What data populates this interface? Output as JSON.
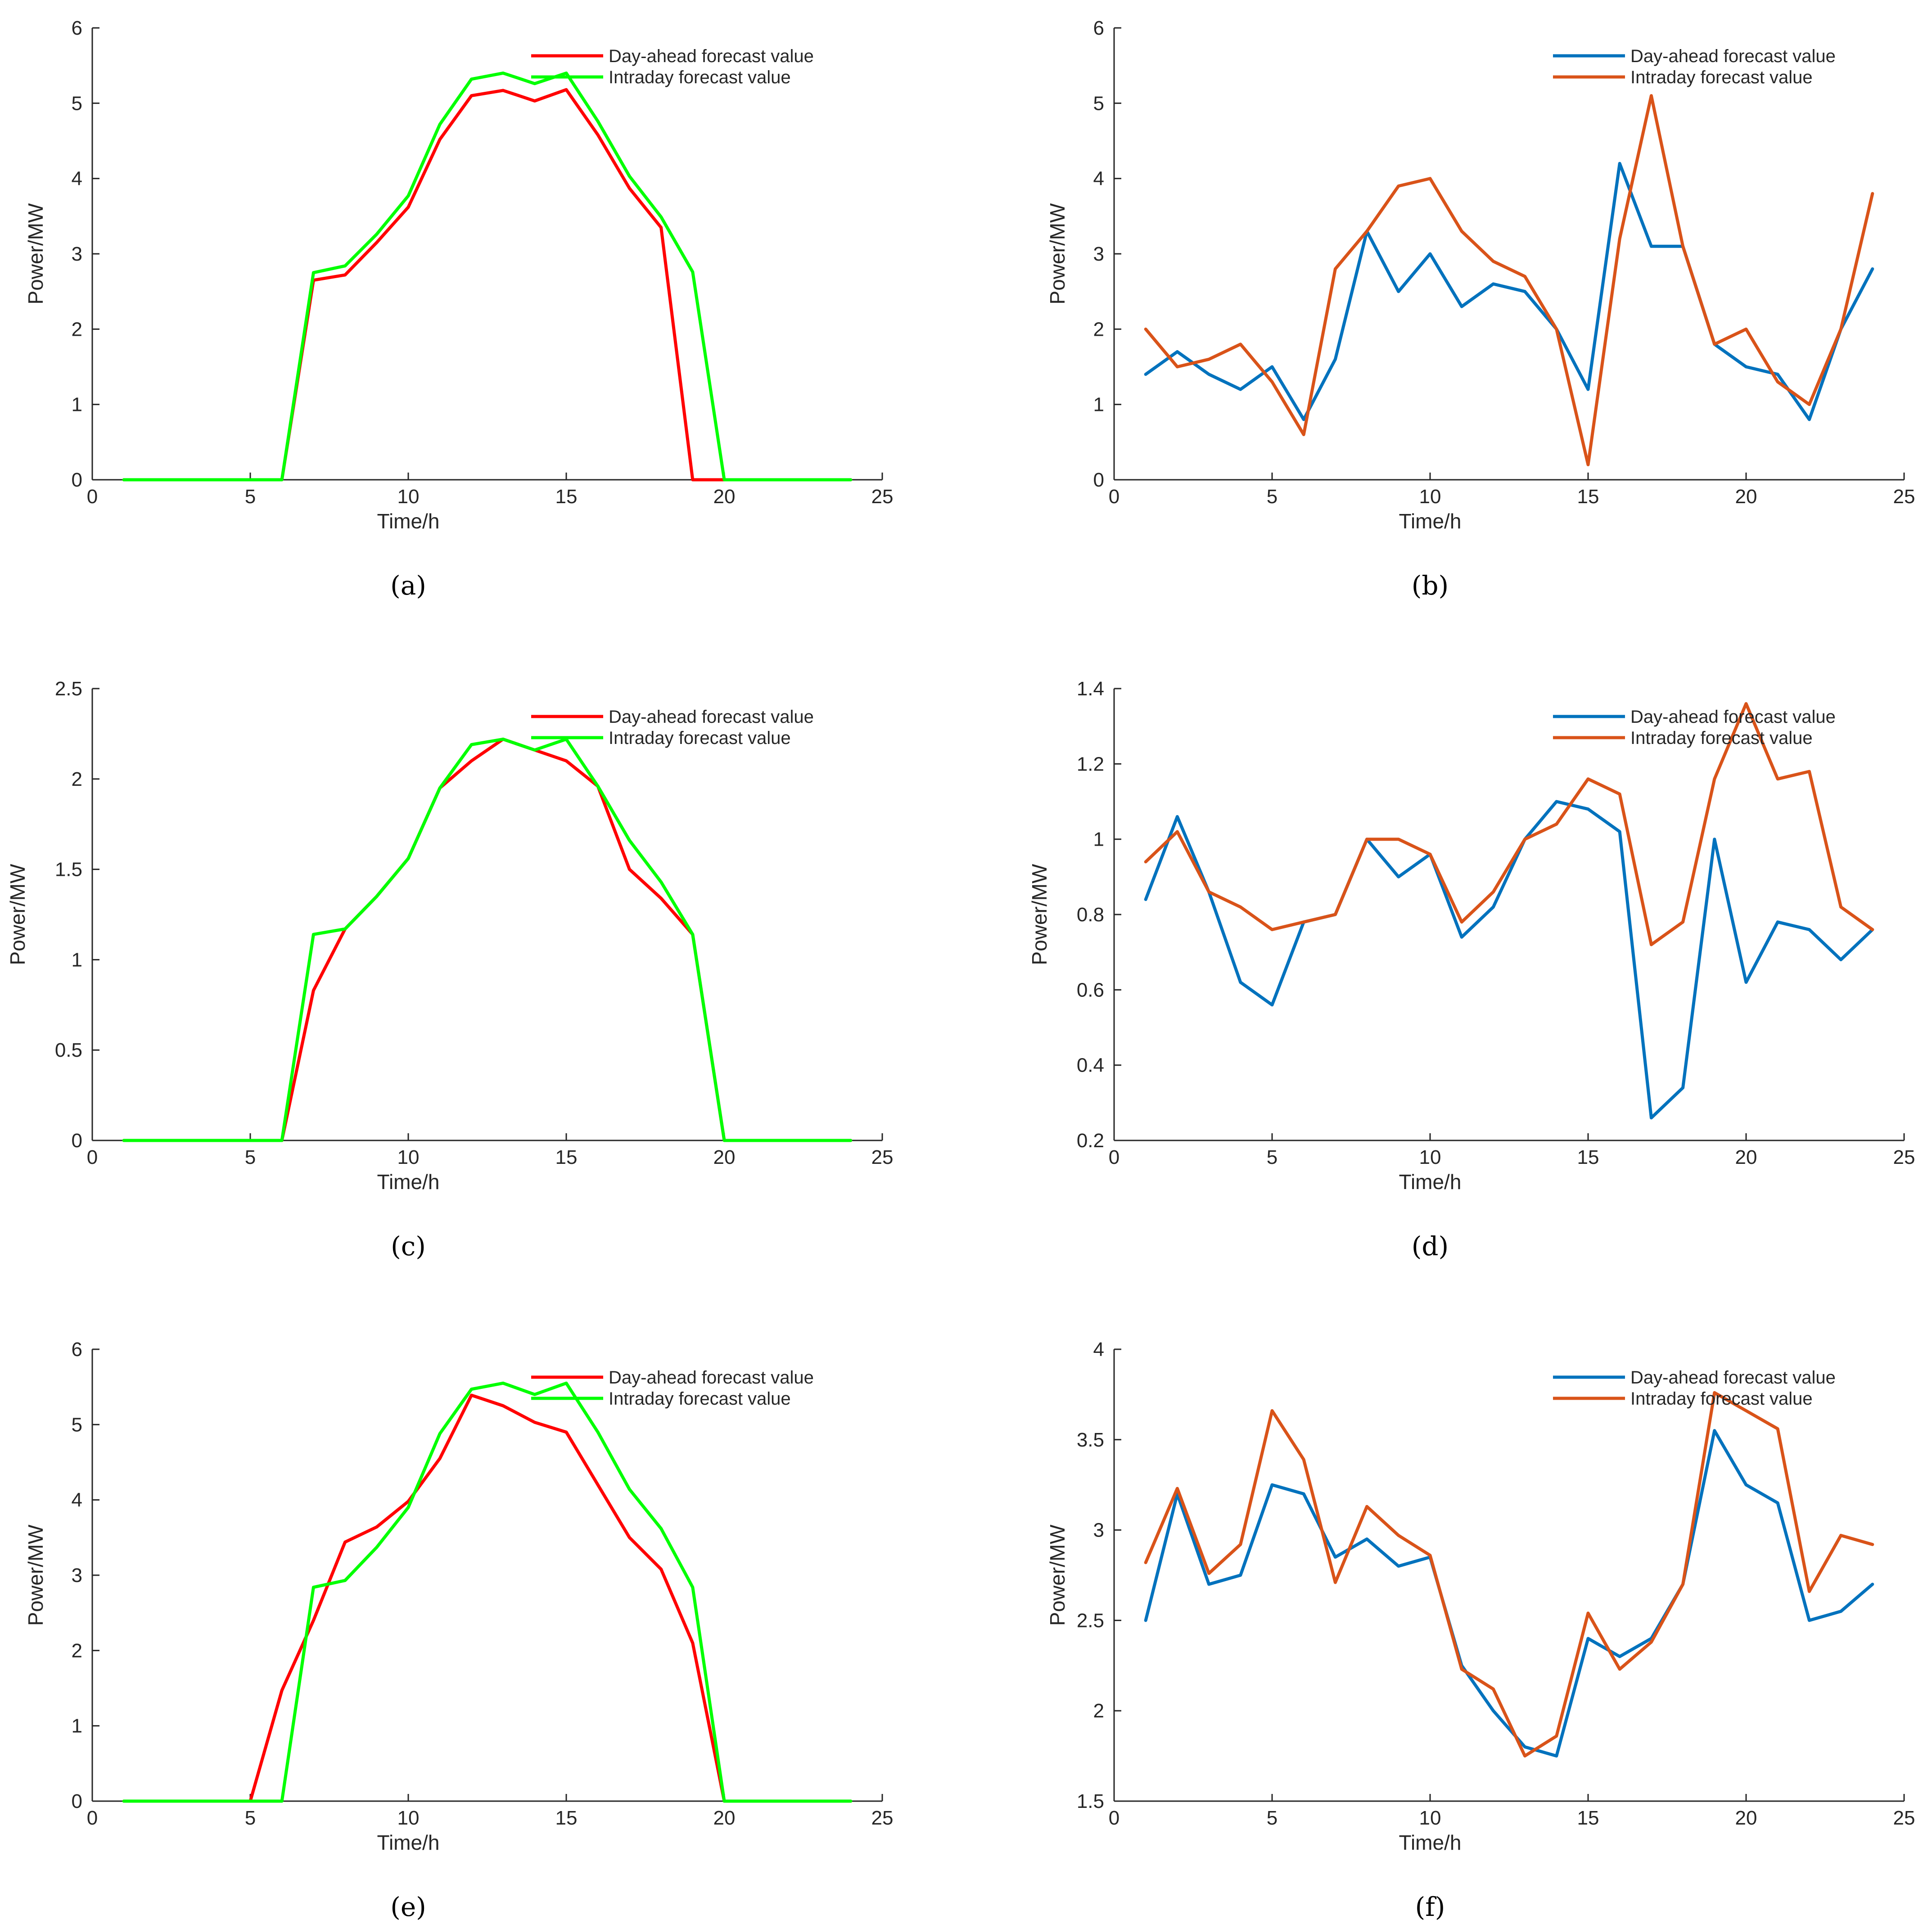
{
  "chart_data": [
    {
      "id": "a",
      "caption": "(a)",
      "type": "line",
      "xlabel": "Time/h",
      "ylabel": "Power/MW",
      "xlim": [
        0,
        25
      ],
      "ylim": [
        0,
        6
      ],
      "xticks": [
        0,
        5,
        10,
        15,
        20,
        25
      ],
      "yticks": [
        0,
        1,
        2,
        3,
        4,
        5,
        6
      ],
      "ytick_labels": [
        "0",
        "1",
        "2",
        "3",
        "4",
        "5",
        "6"
      ],
      "legend_position": "top-right",
      "x": [
        1,
        2,
        3,
        4,
        5,
        6,
        7,
        8,
        9,
        10,
        11,
        12,
        13,
        14,
        15,
        16,
        17,
        18,
        19,
        20,
        21,
        22,
        23,
        24
      ],
      "series": [
        {
          "name": "Day-ahead forecast value",
          "color": "#ff0000",
          "values": [
            0,
            0,
            0,
            0,
            0,
            0,
            2.65,
            2.72,
            3.15,
            3.62,
            4.52,
            5.1,
            5.17,
            5.03,
            5.18,
            4.58,
            3.87,
            3.35,
            0,
            0,
            0,
            0,
            0,
            0
          ]
        },
        {
          "name": "Intraday forecast value",
          "color": "#00ff00",
          "values": [
            0,
            0,
            0,
            0,
            0,
            0,
            2.75,
            2.84,
            3.26,
            3.77,
            4.72,
            5.32,
            5.4,
            5.26,
            5.4,
            4.76,
            4.03,
            3.49,
            2.76,
            0,
            0,
            0,
            0,
            0
          ]
        }
      ]
    },
    {
      "id": "b",
      "caption": "(b)",
      "type": "line",
      "xlabel": "Time/h",
      "ylabel": "Power/MW",
      "xlim": [
        0,
        25
      ],
      "ylim": [
        0,
        6
      ],
      "xticks": [
        0,
        5,
        10,
        15,
        20,
        25
      ],
      "yticks": [
        0,
        1,
        2,
        3,
        4,
        5,
        6
      ],
      "ytick_labels": [
        "0",
        "1",
        "2",
        "3",
        "4",
        "5",
        "6"
      ],
      "legend_position": "top-right",
      "x": [
        1,
        2,
        3,
        4,
        5,
        6,
        7,
        8,
        9,
        10,
        11,
        12,
        13,
        14,
        15,
        16,
        17,
        18,
        19,
        20,
        21,
        22,
        23,
        24
      ],
      "series": [
        {
          "name": "Day-ahead forecast value",
          "color": "#0072bd",
          "values": [
            1.4,
            1.7,
            1.4,
            1.2,
            1.5,
            0.8,
            1.6,
            3.3,
            2.5,
            3.0,
            2.3,
            2.6,
            2.5,
            2.0,
            1.2,
            4.2,
            3.1,
            3.1,
            1.8,
            1.5,
            1.4,
            0.8,
            2.0,
            2.8
          ]
        },
        {
          "name": "Intraday forecast value",
          "color": "#d95319",
          "values": [
            2.0,
            1.5,
            1.6,
            1.8,
            1.3,
            0.6,
            2.8,
            3.3,
            3.9,
            4.0,
            3.3,
            2.9,
            2.7,
            2.0,
            0.2,
            3.2,
            5.1,
            3.1,
            1.8,
            2.0,
            1.3,
            1.0,
            2.0,
            3.8
          ]
        }
      ]
    },
    {
      "id": "c",
      "caption": "(c)",
      "type": "line",
      "xlabel": "Time/h",
      "ylabel": "Power/MW",
      "xlim": [
        0,
        25
      ],
      "ylim": [
        0,
        2.5
      ],
      "xticks": [
        0,
        5,
        10,
        15,
        20,
        25
      ],
      "yticks": [
        0,
        0.5,
        1,
        1.5,
        2,
        2.5
      ],
      "ytick_labels": [
        "0",
        "0.5",
        "1",
        "1.5",
        "2",
        "2.5"
      ],
      "legend_position": "top-right",
      "x": [
        1,
        2,
        3,
        4,
        5,
        6,
        7,
        8,
        9,
        10,
        11,
        12,
        13,
        14,
        15,
        16,
        17,
        18,
        19,
        20,
        21,
        22,
        23,
        24
      ],
      "series": [
        {
          "name": "Day-ahead forecast value",
          "color": "#ff0000",
          "values": [
            0,
            0,
            0,
            0,
            0,
            0,
            0.83,
            1.17,
            1.35,
            1.56,
            1.95,
            2.1,
            2.22,
            2.16,
            2.1,
            1.96,
            1.5,
            1.34,
            1.14,
            0,
            0,
            0,
            0,
            0
          ]
        },
        {
          "name": "Intraday forecast value",
          "color": "#00ff00",
          "values": [
            0,
            0,
            0,
            0,
            0,
            0,
            1.14,
            1.17,
            1.35,
            1.56,
            1.95,
            2.19,
            2.22,
            2.16,
            2.22,
            1.96,
            1.66,
            1.43,
            1.14,
            0,
            0,
            0,
            0,
            0
          ]
        }
      ]
    },
    {
      "id": "d",
      "caption": "(d)",
      "type": "line",
      "xlabel": "Time/h",
      "ylabel": "Power/MW",
      "xlim": [
        0,
        25
      ],
      "ylim": [
        0.2,
        1.4
      ],
      "xticks": [
        0,
        5,
        10,
        15,
        20,
        25
      ],
      "yticks": [
        0.2,
        0.4,
        0.6,
        0.8,
        1,
        1.2,
        1.4
      ],
      "ytick_labels": [
        "0.2",
        "0.4",
        "0.6",
        "0.8",
        "1",
        "1.2",
        "1.4"
      ],
      "legend_position": "top-right",
      "x": [
        1,
        2,
        3,
        4,
        5,
        6,
        7,
        8,
        9,
        10,
        11,
        12,
        13,
        14,
        15,
        16,
        17,
        18,
        19,
        20,
        21,
        22,
        23,
        24
      ],
      "series": [
        {
          "name": "Day-ahead forecast value",
          "color": "#0072bd",
          "values": [
            0.84,
            1.06,
            0.86,
            0.62,
            0.56,
            0.78,
            0.8,
            1.0,
            0.9,
            0.96,
            0.74,
            0.82,
            1.0,
            1.1,
            1.08,
            1.02,
            0.26,
            0.34,
            1.0,
            0.62,
            0.78,
            0.76,
            0.68,
            0.76
          ]
        },
        {
          "name": "Intraday forecast value",
          "color": "#d95319",
          "values": [
            0.94,
            1.02,
            0.86,
            0.82,
            0.76,
            0.78,
            0.8,
            1.0,
            1.0,
            0.96,
            0.78,
            0.86,
            1.0,
            1.04,
            1.16,
            1.12,
            0.72,
            0.78,
            1.16,
            1.36,
            1.16,
            1.18,
            0.82,
            0.76
          ]
        }
      ]
    },
    {
      "id": "e",
      "caption": "(e)",
      "type": "line",
      "xlabel": "Time/h",
      "ylabel": "Power/MW",
      "xlim": [
        0,
        25
      ],
      "ylim": [
        0,
        6
      ],
      "xticks": [
        0,
        5,
        10,
        15,
        20,
        25
      ],
      "yticks": [
        0,
        1,
        2,
        3,
        4,
        5,
        6
      ],
      "ytick_labels": [
        "0",
        "1",
        "2",
        "3",
        "4",
        "5",
        "6"
      ],
      "legend_position": "top-right",
      "x": [
        1,
        2,
        3,
        4,
        5,
        6,
        7,
        8,
        9,
        10,
        11,
        12,
        13,
        14,
        15,
        16,
        17,
        18,
        19,
        20,
        21,
        22,
        23,
        24
      ],
      "series": [
        {
          "name": "Day-ahead forecast value",
          "color": "#ff0000",
          "values": [
            0,
            0,
            0,
            0,
            0,
            1.47,
            2.4,
            3.44,
            3.64,
            3.98,
            4.55,
            5.39,
            5.25,
            5.03,
            4.9,
            4.2,
            3.5,
            3.08,
            2.1,
            0,
            0,
            0,
            0,
            0
          ]
        },
        {
          "name": "Intraday forecast value",
          "color": "#00ff00",
          "values": [
            0,
            0,
            0,
            0,
            0,
            0,
            2.84,
            2.93,
            3.37,
            3.9,
            4.88,
            5.47,
            5.55,
            5.4,
            5.55,
            4.9,
            4.14,
            3.62,
            2.84,
            0,
            0,
            0,
            0,
            0
          ]
        }
      ]
    },
    {
      "id": "f",
      "caption": "(f)",
      "type": "line",
      "xlabel": "Time/h",
      "ylabel": "Power/MW",
      "xlim": [
        0,
        25
      ],
      "ylim": [
        1.5,
        4
      ],
      "xticks": [
        0,
        5,
        10,
        15,
        20,
        25
      ],
      "yticks": [
        1.5,
        2,
        2.5,
        3,
        3.5,
        4
      ],
      "ytick_labels": [
        "1.5",
        "2",
        "2.5",
        "3",
        "3.5",
        "4"
      ],
      "legend_position": "top-right",
      "x": [
        1,
        2,
        3,
        4,
        5,
        6,
        7,
        8,
        9,
        10,
        11,
        12,
        13,
        14,
        15,
        16,
        17,
        18,
        19,
        20,
        21,
        22,
        23,
        24
      ],
      "series": [
        {
          "name": "Day-ahead forecast value",
          "color": "#0072bd",
          "values": [
            2.5,
            3.2,
            2.7,
            2.75,
            3.25,
            3.2,
            2.85,
            2.95,
            2.8,
            2.85,
            2.25,
            2.0,
            1.8,
            1.75,
            2.4,
            2.3,
            2.4,
            2.7,
            3.55,
            3.25,
            3.15,
            2.5,
            2.55,
            2.7
          ]
        },
        {
          "name": "Intraday forecast value",
          "color": "#d95319",
          "values": [
            2.82,
            3.23,
            2.76,
            2.92,
            3.66,
            3.39,
            2.71,
            3.13,
            2.97,
            2.86,
            2.23,
            2.12,
            1.75,
            1.86,
            2.54,
            2.23,
            2.38,
            2.7,
            3.76,
            3.66,
            3.56,
            2.66,
            2.97,
            2.92
          ]
        }
      ]
    }
  ]
}
